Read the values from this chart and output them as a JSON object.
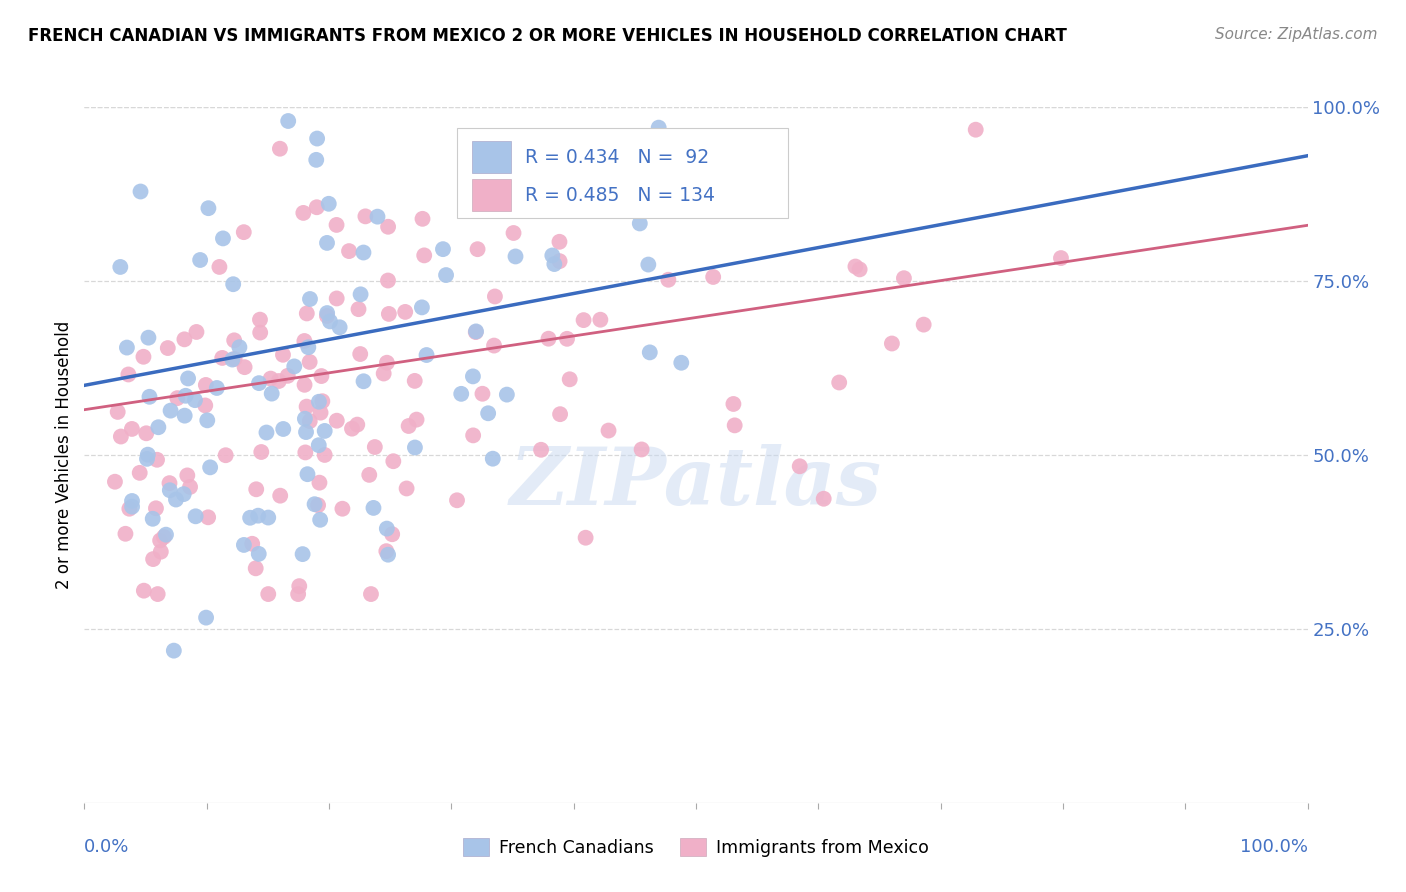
{
  "title": "FRENCH CANADIAN VS IMMIGRANTS FROM MEXICO 2 OR MORE VEHICLES IN HOUSEHOLD CORRELATION CHART",
  "source": "Source: ZipAtlas.com",
  "ylabel": "2 or more Vehicles in Household",
  "blue_color": "#a8c4e8",
  "pink_color": "#f0b0c8",
  "blue_line_color": "#3a6bbf",
  "pink_line_color": "#d06080",
  "blue_label": "French Canadians",
  "pink_label": "Immigrants from Mexico",
  "blue_r": 0.434,
  "blue_n": 92,
  "pink_r": 0.485,
  "pink_n": 134,
  "xlim": [
    0.0,
    1.0
  ],
  "ylim": [
    0.0,
    1.0
  ],
  "yticks": [
    0.25,
    0.5,
    0.75,
    1.0
  ],
  "ytick_labels": [
    "25.0%",
    "50.0%",
    "75.0%",
    "100.0%"
  ],
  "xtick_labels": [
    "0.0%",
    "100.0%"
  ],
  "watermark_color": "#c8d8f0",
  "grid_color": "#d8d8d8",
  "tick_color": "#4472c4",
  "title_fontsize": 12,
  "source_fontsize": 11,
  "tick_fontsize": 13,
  "ylabel_fontsize": 12
}
